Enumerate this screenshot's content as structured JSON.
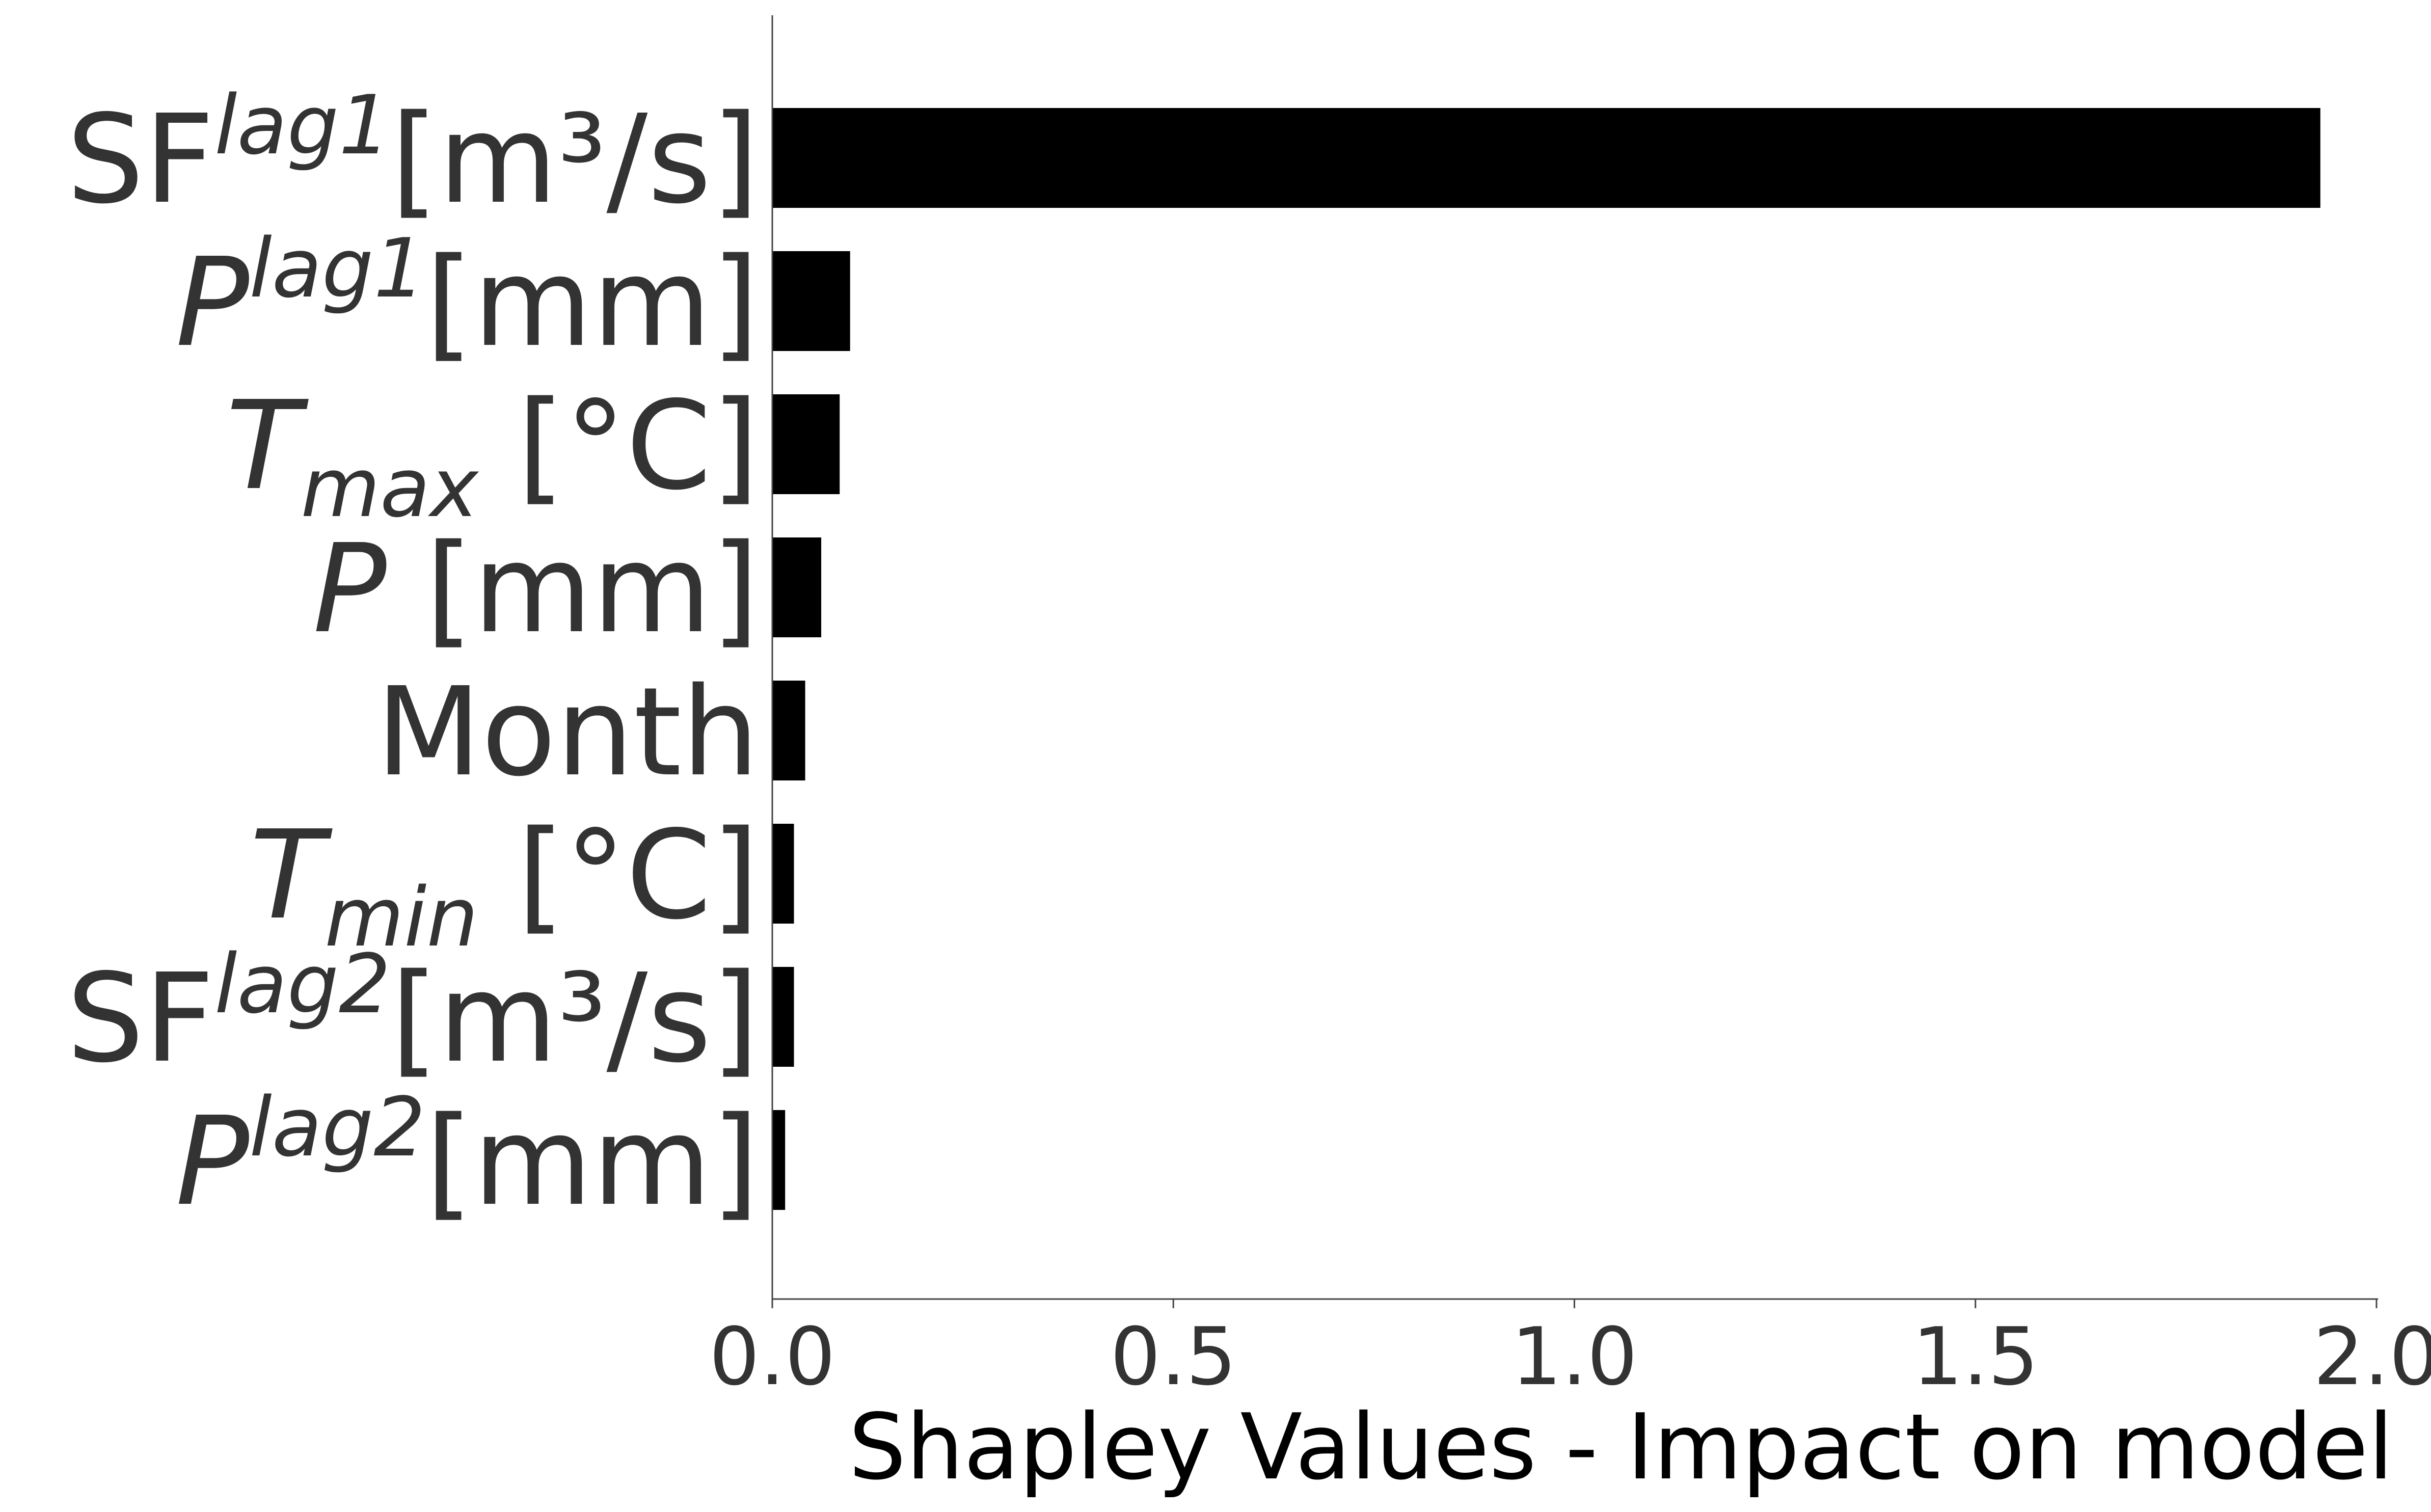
{
  "chart_data": {
    "type": "bar",
    "orientation": "horizontal",
    "categories": [
      {
        "base": "SF",
        "base_italic": false,
        "sup": "lag1",
        "sub": "",
        "unit": "[m³/s]"
      },
      {
        "base": "P",
        "base_italic": true,
        "sup": "lag1",
        "sub": "",
        "unit": "[mm]"
      },
      {
        "base": "T",
        "base_italic": true,
        "sup": "",
        "sub": "max",
        "unit": "[°C]"
      },
      {
        "base": "P",
        "base_italic": true,
        "sup": "",
        "sub": "",
        "unit": "[mm]"
      },
      {
        "base": "Month",
        "base_italic": false,
        "sup": "",
        "sub": "",
        "unit": ""
      },
      {
        "base": "T",
        "base_italic": true,
        "sup": "",
        "sub": "min",
        "unit": "[°C]"
      },
      {
        "base": "SF",
        "base_italic": false,
        "sup": "lag2",
        "sub": "",
        "unit": "[m³/s]"
      },
      {
        "base": "P",
        "base_italic": true,
        "sup": "lag2",
        "sub": "",
        "unit": "[mm]"
      }
    ],
    "values": [
      1.93,
      0.097,
      0.084,
      0.061,
      0.041,
      0.027,
      0.027,
      0.016
    ],
    "xlabel": "Shapley Values - Impact on model",
    "ylabel": "",
    "xlim": [
      0.0,
      2.0
    ],
    "xticks": [
      0.0,
      0.5,
      1.0,
      1.5,
      2.0
    ],
    "xtick_labels": [
      "0.0",
      "0.5",
      "1.0",
      "1.5",
      "2.0"
    ],
    "bar_color": "#000000",
    "grid": false,
    "legend": false
  }
}
